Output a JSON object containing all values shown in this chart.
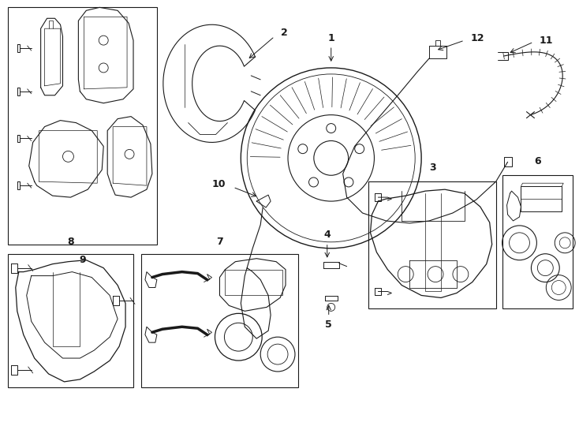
{
  "bg_color": "#ffffff",
  "line_color": "#1a1a1a",
  "lw": 0.8,
  "fig_w": 7.34,
  "fig_h": 5.4,
  "dpi": 100,
  "xlim": [
    0,
    734
  ],
  "ylim": [
    0,
    540
  ]
}
